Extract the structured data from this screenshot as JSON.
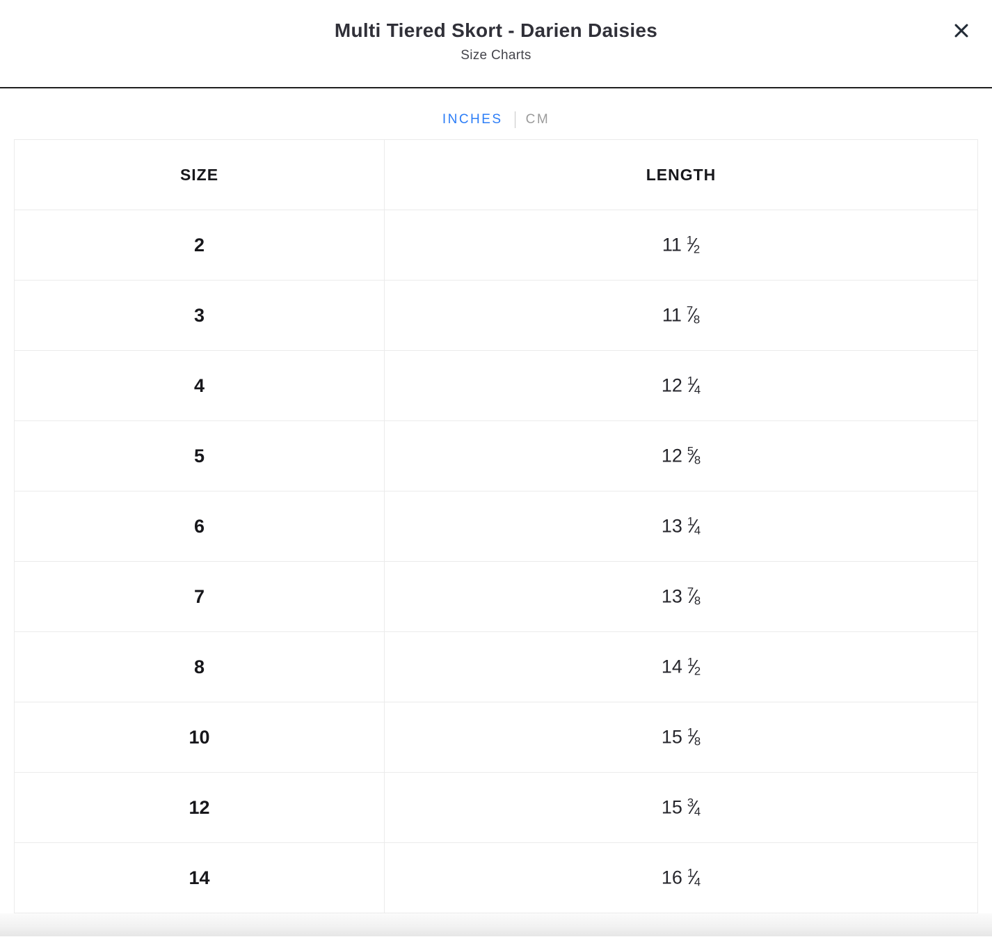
{
  "modal": {
    "title": "Multi Tiered Skort - Darien Daisies",
    "subtitle": "Size Charts"
  },
  "unit_toggle": {
    "inches_label": "INCHES",
    "cm_label": "CM",
    "selected_unit": "INCHES",
    "active_color": "#2D7EF7",
    "inactive_color": "#9B9B9B"
  },
  "size_chart": {
    "unit": "inches",
    "headers": [
      "SIZE",
      "LENGTH"
    ],
    "rows": [
      {
        "size": "2",
        "length": {
          "whole": "11",
          "num": "1",
          "den": "2"
        }
      },
      {
        "size": "3",
        "length": {
          "whole": "11",
          "num": "7",
          "den": "8"
        }
      },
      {
        "size": "4",
        "length": {
          "whole": "12",
          "num": "1",
          "den": "4"
        }
      },
      {
        "size": "5",
        "length": {
          "whole": "12",
          "num": "5",
          "den": "8"
        }
      },
      {
        "size": "6",
        "length": {
          "whole": "13",
          "num": "1",
          "den": "4"
        }
      },
      {
        "size": "7",
        "length": {
          "whole": "13",
          "num": "7",
          "den": "8"
        }
      },
      {
        "size": "8",
        "length": {
          "whole": "14",
          "num": "1",
          "den": "2"
        }
      },
      {
        "size": "10",
        "length": {
          "whole": "15",
          "num": "1",
          "den": "8"
        }
      },
      {
        "size": "12",
        "length": {
          "whole": "15",
          "num": "3",
          "den": "4"
        }
      },
      {
        "size": "14",
        "length": {
          "whole": "16",
          "num": "1",
          "den": "4"
        }
      }
    ]
  },
  "icons": {
    "close": "close-icon"
  },
  "colors": {
    "header_rule": "#1F1F1F",
    "table_border": "#EBEBEB",
    "title_text": "#303038",
    "body_text": "#26262C"
  }
}
